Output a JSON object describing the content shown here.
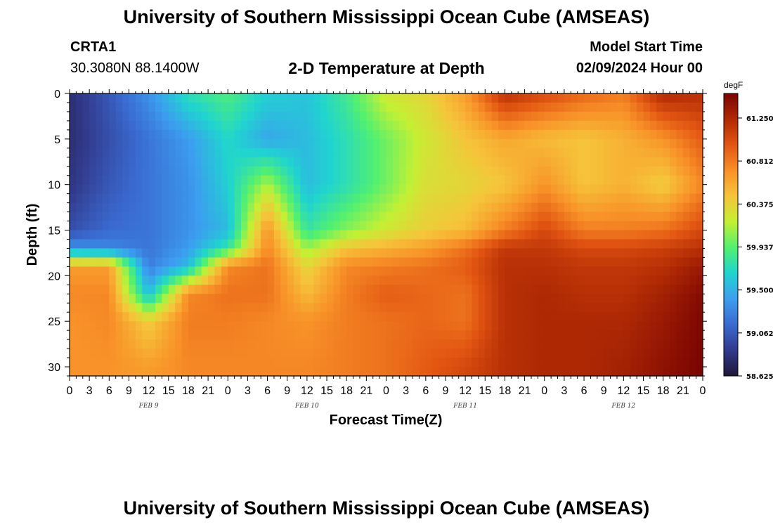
{
  "header": {
    "title": "University of Southern Mississippi Ocean Cube (AMSEAS)",
    "station": "CRTA1",
    "coordinates": "30.3080N  88.1400W",
    "subtitle": "2-D Temperature at Depth",
    "model_start_label": "Model Start Time",
    "model_start_value": "02/09/2024 Hour 00"
  },
  "footer": {
    "title": "University of Southern Mississippi Ocean Cube (AMSEAS)"
  },
  "chart_data": {
    "type": "heatmap",
    "title": "2-D Temperature at Depth",
    "xlabel": "Forecast Time(Z)",
    "ylabel": "Depth (ft)",
    "x_range_hours": [
      0,
      96
    ],
    "y_range_ft": [
      0,
      31
    ],
    "x_tick_labels": [
      "0",
      "3",
      "6",
      "9",
      "12",
      "15",
      "18",
      "21",
      "0",
      "3",
      "6",
      "9",
      "12",
      "15",
      "18",
      "21",
      "0",
      "3",
      "6",
      "9",
      "12",
      "15",
      "18",
      "21",
      "0",
      "3",
      "6",
      "9",
      "12",
      "15",
      "18",
      "21",
      "0"
    ],
    "y_ticks": [
      0,
      5,
      10,
      15,
      20,
      25,
      30
    ],
    "day_labels": [
      {
        "label": "FEB 9",
        "hour": 12
      },
      {
        "label": "FEB 10",
        "hour": 36
      },
      {
        "label": "FEB 11",
        "hour": 60
      },
      {
        "label": "FEB 12",
        "hour": 84
      }
    ],
    "colorbar": {
      "unit": "degF",
      "range": [
        58.625,
        61.5
      ],
      "tick_labels": [
        "61.2500",
        "60.8125",
        "60.3750",
        "59.9375",
        "59.5000",
        "59.0625",
        "58.6250"
      ],
      "tick_values": [
        61.25,
        60.8125,
        60.375,
        59.9375,
        59.5,
        59.0625,
        58.625
      ],
      "colors": [
        "#1e1838",
        "#323a8c",
        "#3a6ad0",
        "#3c9ef0",
        "#20d4d0",
        "#52f070",
        "#c4f034",
        "#f6c43a",
        "#f89028",
        "#e25512",
        "#b02a04",
        "#7a0403"
      ]
    },
    "time_hours": [
      0,
      6,
      12,
      18,
      24,
      30,
      36,
      42,
      48,
      54,
      60,
      66,
      72,
      78,
      84,
      90,
      96
    ],
    "depth_ft": [
      0,
      5,
      10,
      15,
      17,
      19,
      22,
      25,
      30
    ],
    "temperature_grid": [
      [
        58.8,
        59.05,
        59.35,
        59.75,
        59.9,
        59.65,
        59.6,
        59.85,
        60.25,
        60.35,
        60.65,
        61.2,
        61.05,
        60.9,
        60.8,
        61.25,
        61.2
      ],
      [
        58.8,
        59.0,
        59.2,
        59.4,
        59.7,
        59.45,
        59.55,
        59.75,
        60.0,
        60.25,
        60.45,
        60.6,
        60.5,
        60.45,
        60.55,
        60.7,
        60.95
      ],
      [
        58.85,
        59.05,
        59.2,
        59.35,
        59.65,
        60.15,
        59.55,
        59.75,
        60.0,
        60.3,
        60.35,
        60.45,
        60.7,
        60.45,
        60.55,
        60.4,
        60.75
      ],
      [
        59.0,
        59.15,
        59.2,
        59.35,
        59.55,
        60.7,
        59.8,
        60.05,
        60.25,
        60.4,
        60.5,
        60.8,
        61.05,
        60.8,
        60.8,
        60.85,
        61.05
      ],
      [
        59.35,
        59.3,
        59.2,
        59.4,
        59.8,
        60.75,
        60.1,
        60.45,
        60.55,
        60.65,
        60.85,
        61.15,
        61.15,
        61.05,
        61.05,
        61.1,
        61.2
      ],
      [
        60.65,
        60.65,
        59.25,
        59.55,
        60.75,
        60.85,
        60.35,
        60.75,
        60.8,
        60.85,
        60.95,
        61.2,
        61.2,
        61.15,
        61.15,
        61.2,
        61.35
      ],
      [
        60.75,
        60.75,
        59.55,
        60.75,
        60.85,
        60.85,
        60.5,
        60.8,
        60.95,
        60.9,
        60.85,
        61.2,
        61.25,
        61.2,
        61.2,
        61.3,
        61.45
      ],
      [
        60.7,
        60.75,
        60.4,
        60.8,
        60.8,
        60.75,
        60.7,
        60.8,
        60.85,
        60.9,
        60.85,
        61.2,
        61.25,
        61.25,
        61.25,
        61.35,
        61.48
      ],
      [
        60.7,
        60.7,
        60.65,
        60.75,
        60.75,
        60.75,
        60.75,
        60.8,
        60.85,
        60.95,
        61.05,
        61.2,
        61.25,
        61.25,
        61.3,
        61.4,
        61.5
      ]
    ]
  }
}
